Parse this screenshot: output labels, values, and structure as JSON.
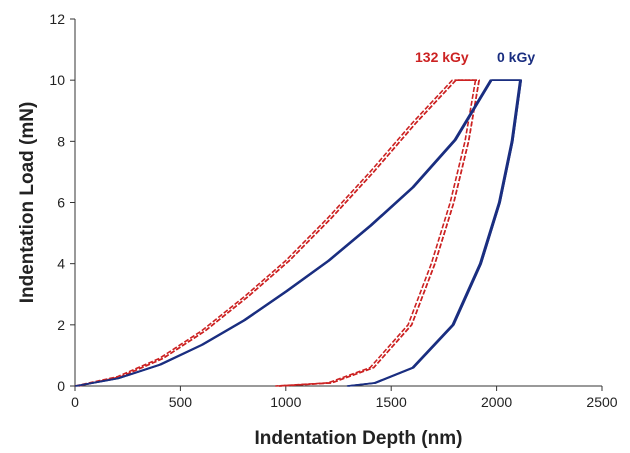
{
  "chart_data": {
    "type": "line",
    "title": "",
    "xlabel": "Indentation Depth (nm)",
    "ylabel": "Indentation Load (mN)",
    "xlim": [
      0,
      2500
    ],
    "ylim": [
      0,
      12
    ],
    "xticks": [
      0,
      500,
      1000,
      1500,
      2000,
      2500
    ],
    "yticks": [
      0,
      2,
      4,
      6,
      8,
      10,
      12
    ],
    "grid": false,
    "legend": "top-right",
    "series": [
      {
        "name": "132 kGy",
        "color": "#cc2222",
        "style": "dashed",
        "loading": [
          [
            0,
            0
          ],
          [
            200,
            0.3
          ],
          [
            400,
            0.9
          ],
          [
            600,
            1.8
          ],
          [
            800,
            2.9
          ],
          [
            1000,
            4.1
          ],
          [
            1200,
            5.5
          ],
          [
            1400,
            7.0
          ],
          [
            1600,
            8.6
          ],
          [
            1790,
            10
          ]
        ],
        "hold": [
          [
            1790,
            10
          ],
          [
            1900,
            10
          ]
        ],
        "unloading": [
          [
            1900,
            10
          ],
          [
            1850,
            8
          ],
          [
            1780,
            6
          ],
          [
            1690,
            4
          ],
          [
            1580,
            2
          ],
          [
            1400,
            0.6
          ],
          [
            1200,
            0.1
          ],
          [
            950,
            0
          ]
        ]
      },
      {
        "name": "0 kGy",
        "color": "#1a2e80",
        "style": "solid",
        "loading": [
          [
            0,
            0
          ],
          [
            200,
            0.25
          ],
          [
            400,
            0.7
          ],
          [
            600,
            1.35
          ],
          [
            800,
            2.15
          ],
          [
            1000,
            3.1
          ],
          [
            1200,
            4.1
          ],
          [
            1400,
            5.25
          ],
          [
            1600,
            6.5
          ],
          [
            1800,
            8.05
          ],
          [
            1970,
            10
          ]
        ],
        "hold": [
          [
            1970,
            10
          ],
          [
            2110,
            10
          ]
        ],
        "unloading": [
          [
            2110,
            10
          ],
          [
            2070,
            8
          ],
          [
            2010,
            6
          ],
          [
            1920,
            4
          ],
          [
            1790,
            2
          ],
          [
            1600,
            0.6
          ],
          [
            1420,
            0.1
          ],
          [
            1290,
            0
          ]
        ]
      }
    ]
  }
}
